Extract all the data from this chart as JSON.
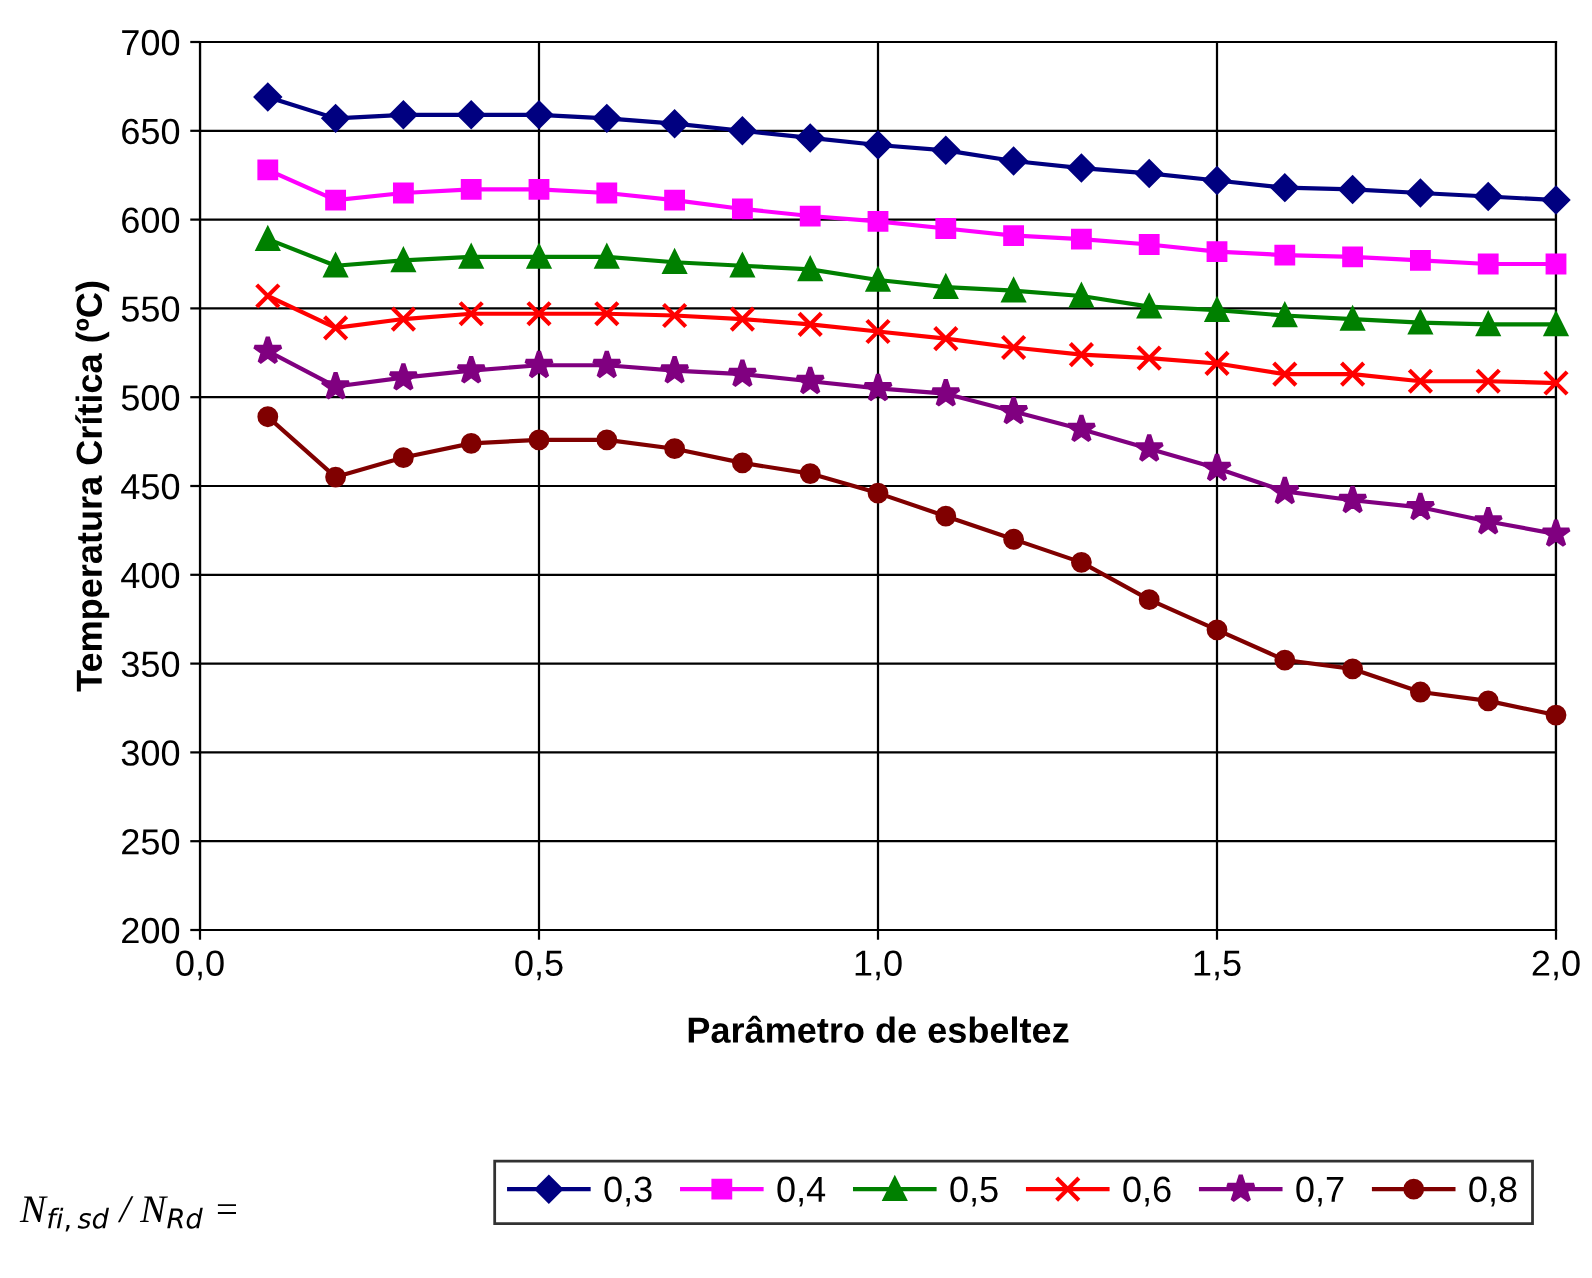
{
  "chart_data": {
    "type": "line",
    "xlabel": "Parâmetro de esbeltez",
    "ylabel": "Temperatura Crítica (ºC)",
    "legend_title": "N$_{fi,sd}$ / N$_{Rd}$ =",
    "x": [
      0.1,
      0.2,
      0.3,
      0.4,
      0.5,
      0.6,
      0.7,
      0.8,
      0.9,
      1.0,
      1.1,
      1.2,
      1.3,
      1.4,
      1.5,
      1.6,
      1.7,
      1.8,
      1.9,
      2.0
    ],
    "series": [
      {
        "name": "0,3",
        "color": "#000080",
        "marker": "diamond",
        "values": [
          669,
          657,
          659,
          659,
          659,
          657,
          654,
          650,
          646,
          642,
          639,
          633,
          629,
          626,
          622,
          618,
          617,
          615,
          613,
          611
        ]
      },
      {
        "name": "0,4",
        "color": "#ff00ff",
        "marker": "square",
        "values": [
          628,
          611,
          615,
          617,
          617,
          615,
          611,
          606,
          602,
          599,
          595,
          591,
          589,
          586,
          582,
          580,
          579,
          577,
          575,
          575
        ]
      },
      {
        "name": "0,5",
        "color": "#008000",
        "marker": "triangle",
        "values": [
          589,
          574,
          577,
          579,
          579,
          579,
          576,
          574,
          572,
          566,
          562,
          560,
          557,
          551,
          549,
          546,
          544,
          542,
          541,
          541
        ]
      },
      {
        "name": "0,6",
        "color": "#ff0000",
        "marker": "cross",
        "values": [
          557,
          539,
          544,
          547,
          547,
          547,
          546,
          544,
          541,
          537,
          533,
          528,
          524,
          522,
          519,
          513,
          513,
          509,
          509,
          508
        ]
      },
      {
        "name": "0,7",
        "color": "#800080",
        "marker": "star",
        "values": [
          526,
          506,
          511,
          515,
          518,
          518,
          515,
          513,
          509,
          505,
          502,
          492,
          482,
          471,
          460,
          447,
          442,
          438,
          430,
          423
        ]
      },
      {
        "name": "0,8",
        "color": "#800000",
        "marker": "circle",
        "values": [
          489,
          455,
          466,
          474,
          476,
          476,
          471,
          463,
          457,
          446,
          433,
          420,
          407,
          386,
          369,
          352,
          347,
          334,
          329,
          321
        ]
      }
    ],
    "xlim": [
      0,
      2.0
    ],
    "xticks": [
      {
        "value": 0,
        "label": "0,0"
      },
      {
        "value": 0.5,
        "label": "0,5"
      },
      {
        "value": 1.0,
        "label": "1,0"
      },
      {
        "value": 1.5,
        "label": "1,5"
      },
      {
        "value": 2.0,
        "label": "2,0"
      }
    ],
    "ylim": [
      200,
      700
    ],
    "yticks": [
      200,
      250,
      300,
      350,
      400,
      450,
      500,
      550,
      600,
      650,
      700
    ],
    "grid": true,
    "legend": "bottom",
    "line_style": "solid"
  }
}
